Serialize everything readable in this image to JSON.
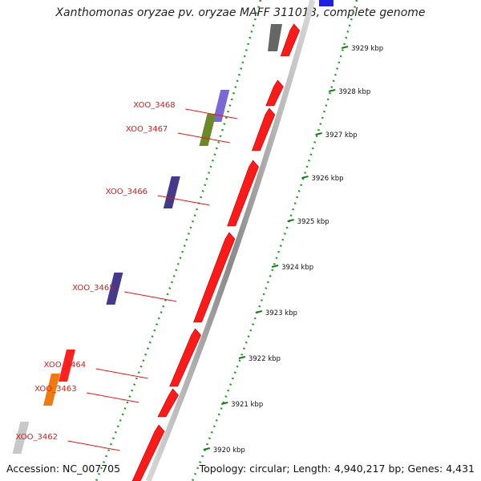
{
  "title": "Xanthomonas oryzae pv. oryzae MAFF 311018, complete genome",
  "footer": {
    "accession_label": "Accession:",
    "accession": "NC_007705",
    "topology_text": "Topology: circular; Length: 4,940,217 bp; Genes: 4,431"
  },
  "genes": [
    {
      "id": "XOO_3468",
      "color": "#7b68d8",
      "pos": 0.25
    },
    {
      "id": "XOO_3467",
      "color": "#6a8a2a",
      "pos": 0.3
    },
    {
      "id": "XOO_3466",
      "color": "#453a8a",
      "pos": 0.43
    },
    {
      "id": "XOO_3465",
      "color": "#453a8a",
      "pos": 0.63
    },
    {
      "id": "XOO_3464",
      "color": "#ff2020",
      "pos": 0.79
    },
    {
      "id": "XOO_3463",
      "color": "#f07a10",
      "pos": 0.84
    },
    {
      "id": "XOO_3462",
      "color": "#c8c8c8",
      "pos": 0.94
    }
  ],
  "ticks": [
    {
      "label": "3929 kbp",
      "pos": 0.1
    },
    {
      "label": "3928 kbp",
      "pos": 0.19
    },
    {
      "label": "3927 kbp",
      "pos": 0.28
    },
    {
      "label": "3926 kbp",
      "pos": 0.37
    },
    {
      "label": "3925 kbp",
      "pos": 0.46
    },
    {
      "label": "3924 kbp",
      "pos": 0.555
    },
    {
      "label": "3923 kbp",
      "pos": 0.65
    },
    {
      "label": "3922 kbp",
      "pos": 0.745
    },
    {
      "label": "3921 kbp",
      "pos": 0.84
    },
    {
      "label": "3920 kbp",
      "pos": 0.935
    }
  ]
}
